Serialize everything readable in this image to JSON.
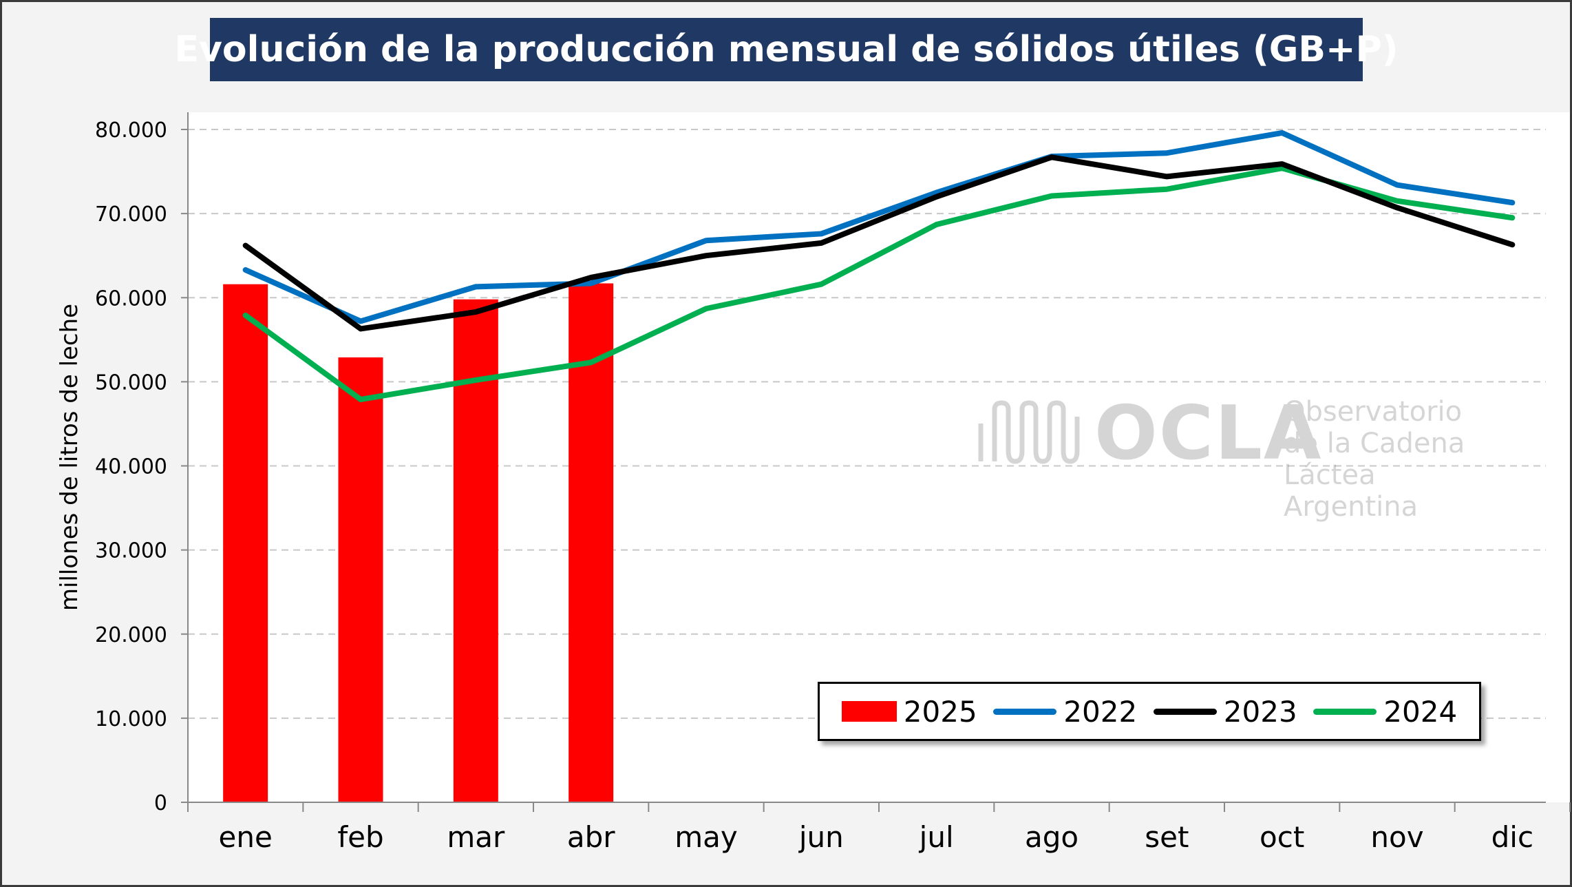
{
  "chart_data": {
    "type": "bar+line",
    "title": "Evolución de la producción mensual de sólidos útiles (GB+P)",
    "ylabel": "millones de litros de leche",
    "xlabel": "",
    "categories": [
      "ene",
      "feb",
      "mar",
      "abr",
      "may",
      "jun",
      "jul",
      "ago",
      "set",
      "oct",
      "nov",
      "dic"
    ],
    "ylim": [
      0,
      80000
    ],
    "yticks": [
      0,
      10000,
      20000,
      30000,
      40000,
      50000,
      60000,
      70000,
      80000
    ],
    "ytick_labels": [
      "0",
      "10.000",
      "20.000",
      "30.000",
      "40.000",
      "50.000",
      "60.000",
      "70.000",
      "80.000"
    ],
    "grid": "horizontal dashed",
    "legend_position": "bottom-right",
    "bars": {
      "name": "2025",
      "color": "#ff0000",
      "values": [
        61600,
        52900,
        59800,
        61700,
        null,
        null,
        null,
        null,
        null,
        null,
        null,
        null
      ]
    },
    "series": [
      {
        "name": "2022",
        "color": "#0070c0",
        "values": [
          63300,
          57200,
          61300,
          61700,
          66800,
          67600,
          72500,
          76800,
          77200,
          79600,
          73400,
          71300
        ]
      },
      {
        "name": "2023",
        "color": "#000000",
        "values": [
          66200,
          56300,
          58300,
          62400,
          65000,
          66500,
          72000,
          76700,
          74400,
          75900,
          70700,
          66300
        ]
      },
      {
        "name": "2024",
        "color": "#00b050",
        "values": [
          57900,
          47900,
          50200,
          52300,
          58700,
          61600,
          68700,
          72100,
          72900,
          75400,
          71500,
          69500
        ]
      }
    ],
    "legend_order": [
      "2025",
      "2022",
      "2023",
      "2024"
    ]
  },
  "watermark": {
    "logo": "OCLA",
    "line1": "Observatorio",
    "line2": "de la Cadena Láctea",
    "line3": "Argentina",
    "icon": "milk-wave-icon"
  }
}
